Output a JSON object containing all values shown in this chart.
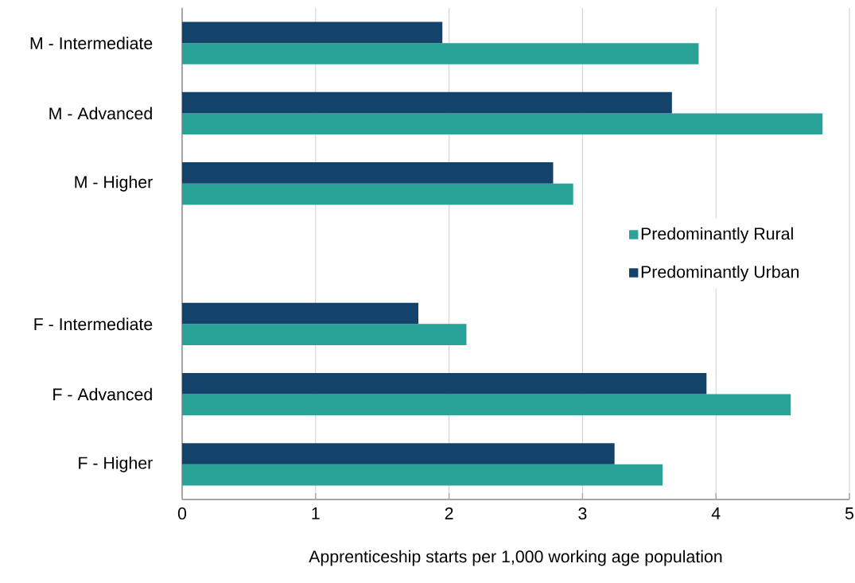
{
  "chart_data": {
    "type": "bar",
    "orientation": "horizontal",
    "xlabel": "Apprenticeship starts per 1,000 working age population",
    "categories": [
      "M - Intermediate",
      "M - Advanced",
      "M - Higher",
      null,
      "F - Intermediate",
      "F - Advanced",
      "F - Higher"
    ],
    "series": [
      {
        "name": "Predominantly Rural",
        "color": "#29a297",
        "values": [
          3.87,
          4.8,
          2.93,
          null,
          2.13,
          4.56,
          3.6
        ]
      },
      {
        "name": "Predominantly Urban",
        "color": "#13426b",
        "values": [
          1.95,
          3.67,
          2.78,
          null,
          1.77,
          3.93,
          3.24
        ]
      }
    ],
    "xlim": [
      0,
      5
    ],
    "xticks": [
      0,
      1,
      2,
      3,
      4,
      5
    ],
    "grid": "x",
    "legend": "right"
  }
}
